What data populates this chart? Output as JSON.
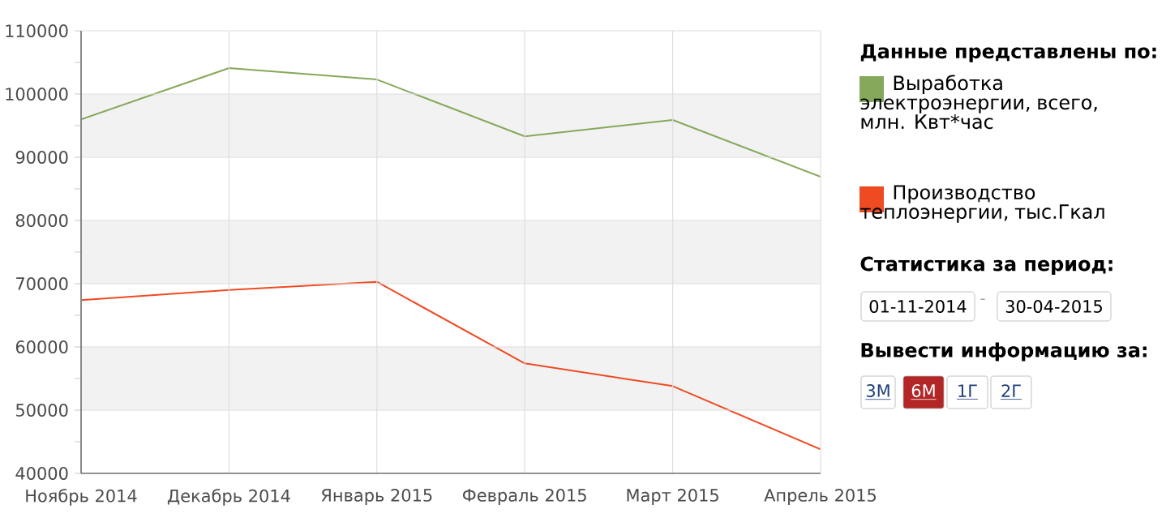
{
  "chart_data": {
    "type": "line",
    "categories": [
      "Ноябрь 2014",
      "Декабрь 2014",
      "Январь 2015",
      "Февраль 2015",
      "Март 2015",
      "Апрель 2015"
    ],
    "series": [
      {
        "name": "Выработка электроэнергии, всего, млн. Квт*час",
        "color": "#86a85b",
        "values": [
          96000,
          104100,
          102300,
          93300,
          95900,
          86900
        ]
      },
      {
        "name": "Производство теплоэнергии, тыс.Гкал",
        "color": "#ee4b22",
        "values": [
          67400,
          69000,
          70300,
          57400,
          53800,
          43800
        ]
      }
    ],
    "ylim": [
      40000,
      110000
    ],
    "yticks": [
      40000,
      50000,
      60000,
      70000,
      80000,
      90000,
      100000,
      110000
    ],
    "grid": true,
    "bands": [
      {
        "axis": "y",
        "from": 50000,
        "to": 60000,
        "color": "#f2f2f2"
      },
      {
        "axis": "y",
        "from": 70000,
        "to": 80000,
        "color": "#f2f2f2"
      },
      {
        "axis": "y",
        "from": 90000,
        "to": 100000,
        "color": "#f2f2f2"
      }
    ],
    "legend": "right",
    "legend_title": "Данные представлены по:",
    "annotations": [
      "Статистика за период:",
      "01-11-2014",
      "-",
      "30-04-2015",
      "Вывести информацию за:",
      "3М",
      "6М",
      "1Г",
      "2Г"
    ]
  }
}
